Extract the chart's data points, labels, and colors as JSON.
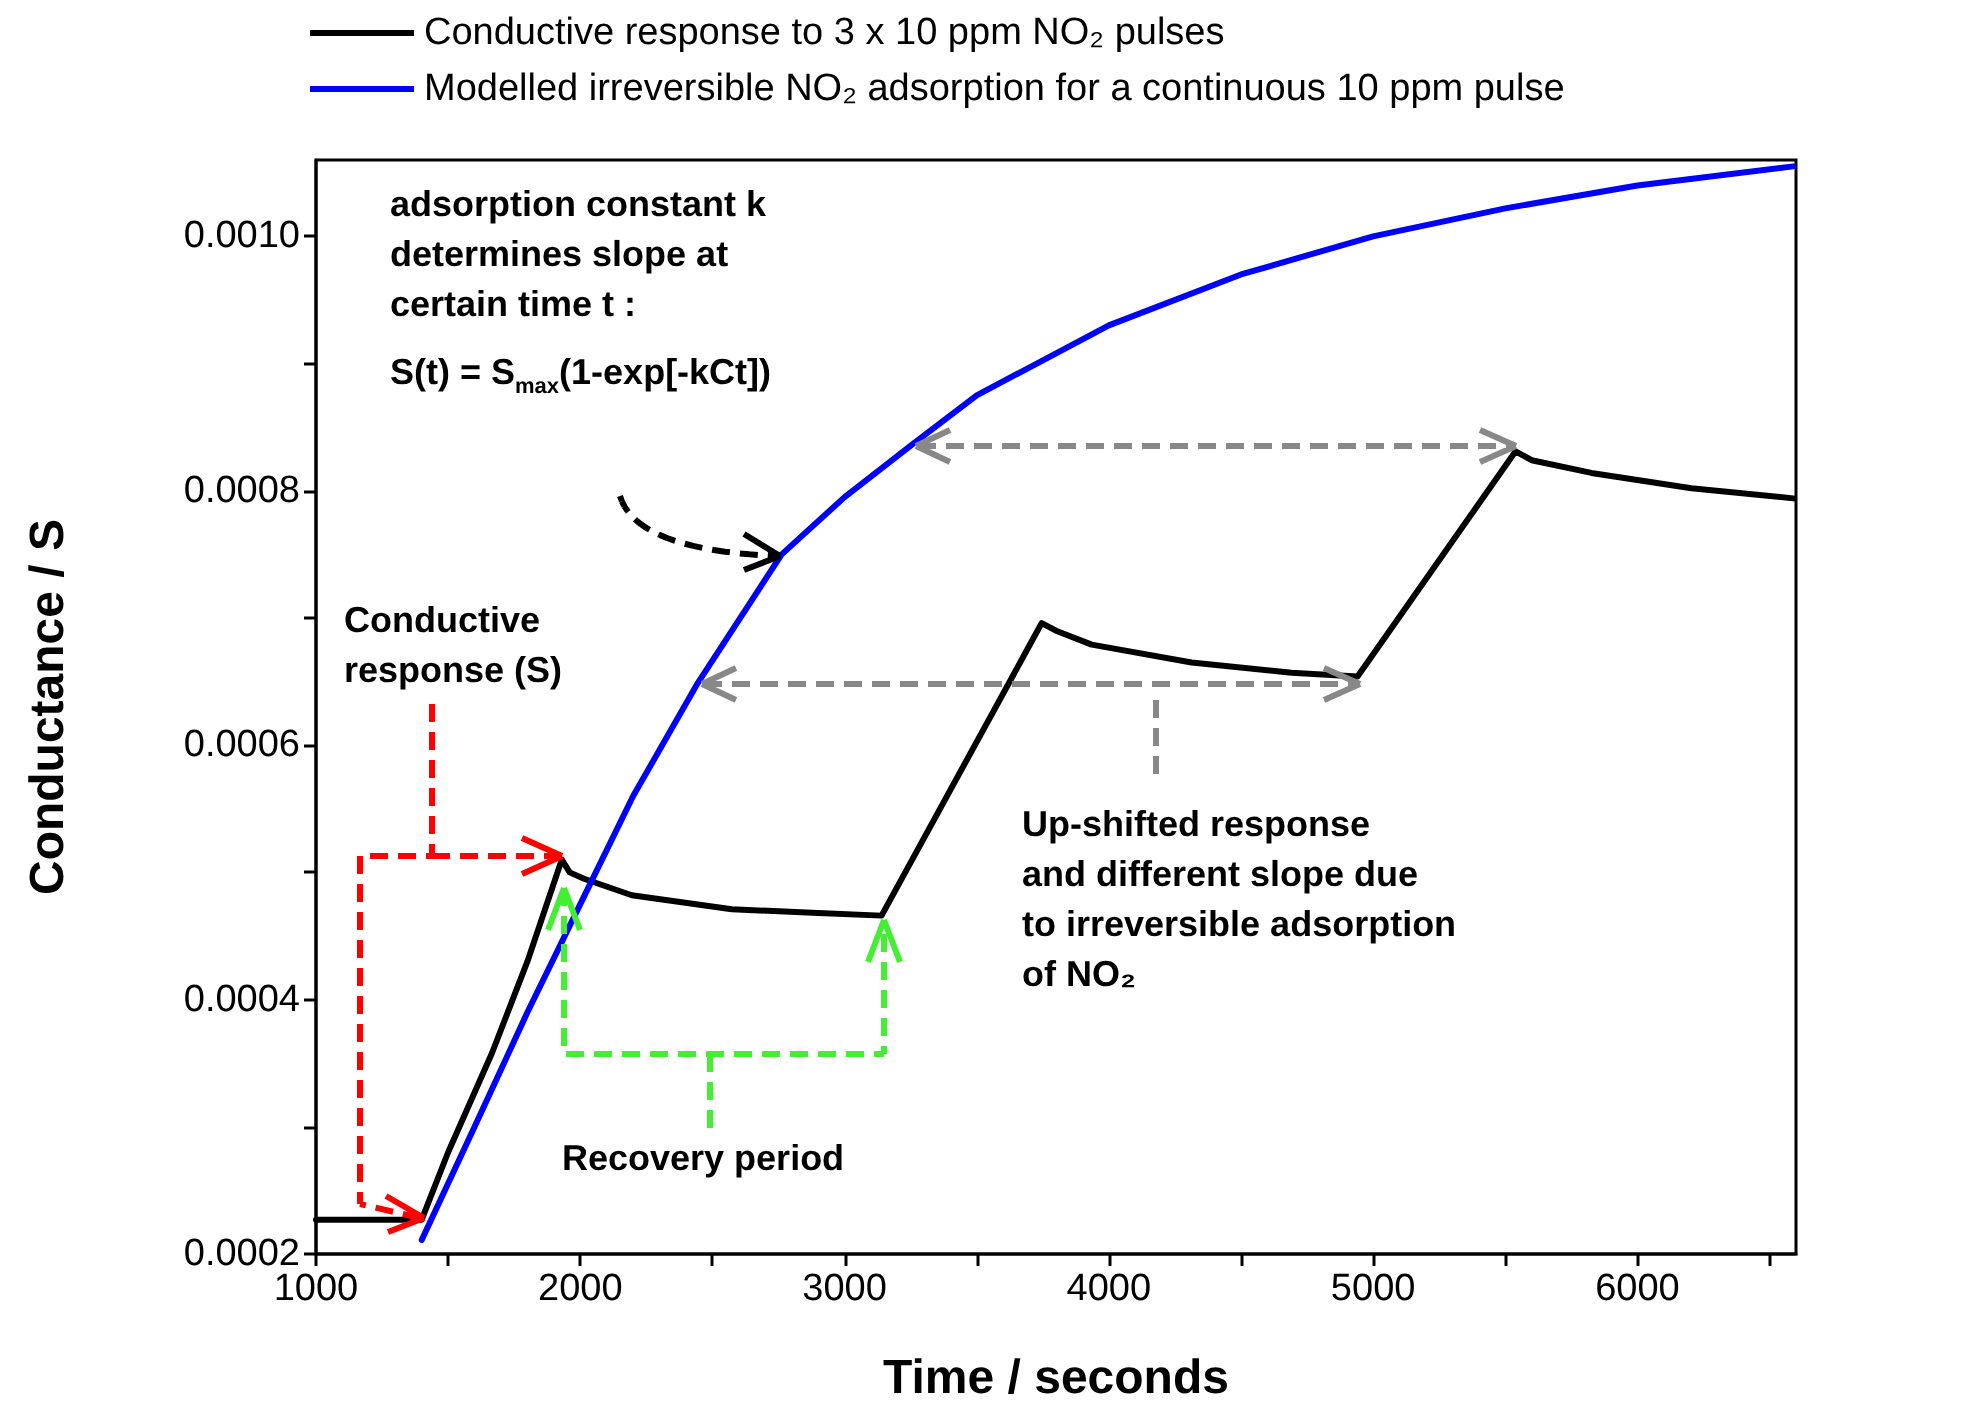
{
  "chart_data": {
    "type": "line",
    "xlabel": "Time / seconds",
    "ylabel": "Conductance / S",
    "series": [
      {
        "name": "Conductive response to 3 x 10 ppm NO₂ pulses",
        "color": "#000000",
        "x": [
          1000,
          1400,
          1500,
          1666,
          1800,
          1930,
          1960,
          2014,
          2195,
          2573,
          2900,
          3140,
          3746,
          3800,
          3935,
          4313,
          4691,
          4941,
          5539,
          5600,
          5826,
          6204,
          6590
        ],
        "values": [
          0.000227,
          0.000227,
          0.00028,
          0.000358,
          0.00043,
          0.00051,
          0.0005,
          0.000495,
          0.000482,
          0.000471,
          0.000468,
          0.000466,
          0.000696,
          0.00069,
          0.000679,
          0.000665,
          0.000657,
          0.000654,
          0.000831,
          0.000824,
          0.000814,
          0.000802,
          0.000794
        ]
      },
      {
        "name": "Modelled irreversible NO₂ adsorption for a continuous 10 ppm pulse",
        "color": "#0000ff",
        "x": [
          1400,
          1600,
          1800,
          2000,
          2200,
          2445,
          2762,
          3000,
          3254,
          3500,
          4000,
          4500,
          5000,
          5500,
          6000,
          6590
        ],
        "values": [
          0.000211,
          0.0003,
          0.00039,
          0.000475,
          0.00056,
          0.000649,
          0.00075,
          0.000795,
          0.000836,
          0.000875,
          0.00093,
          0.00097,
          0.001,
          0.001022,
          0.00104,
          0.001055
        ]
      }
    ],
    "xlim": [
      1000,
      6600
    ],
    "xticks": [
      1000,
      {
        "value": 1500,
        "label": null
      },
      2000,
      {
        "value": 2500,
        "label": null
      },
      3000,
      {
        "value": 3500,
        "label": null
      },
      4000,
      {
        "value": 4500,
        "label": null
      },
      5000,
      {
        "value": 5500,
        "label": null
      },
      6000,
      {
        "value": 6500,
        "label": null
      }
    ],
    "ylim": [
      0.0002,
      0.00106
    ],
    "yticks": [
      {
        "value": 0.0002,
        "label": "0.0002"
      },
      {
        "value": 0.0003,
        "label": null
      },
      {
        "value": 0.0004,
        "label": "0.0004"
      },
      {
        "value": 0.0005,
        "label": null
      },
      {
        "value": 0.0006,
        "label": "0.0006"
      },
      {
        "value": 0.0007,
        "label": null
      },
      {
        "value": 0.0008,
        "label": "0.0008"
      },
      {
        "value": 0.0009,
        "label": null
      },
      {
        "value": 0.001,
        "label": "0.0010"
      }
    ],
    "annotations": [
      "adsorption constant k\ndetermines slope at\ncertain time t :",
      "S(t) = S$_{max}$(1-exp[-kCt])",
      "Conductive\nresponse (S)",
      "Recovery period",
      "Up-shifted response\nand different slope due\nto irreversible adsorption\nof NO₂"
    ],
    "legend": "top left",
    "marker": "none",
    "line_style": "solid",
    "grid": false
  }
}
